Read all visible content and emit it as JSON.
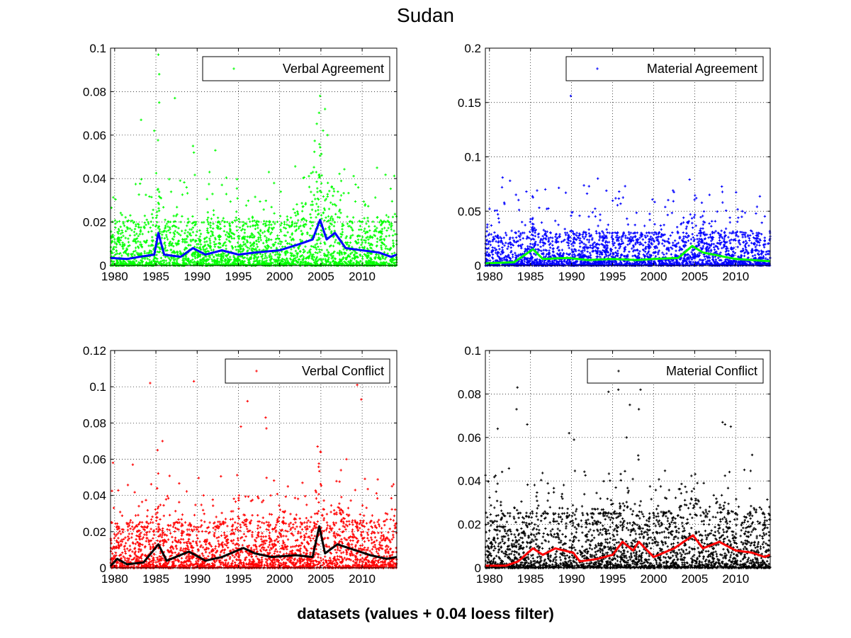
{
  "figure": {
    "title": "Sudan",
    "xlabel": "datasets (values + 0.04 loess filter)"
  },
  "chart_data": [
    {
      "type": "scatter",
      "panel": "top-left",
      "series_name": "Verbal Agreement",
      "point_color": "#00ff00",
      "line_color": "#0000ff",
      "xlim": [
        1979.5,
        2014.2
      ],
      "ylim": [
        0,
        0.1
      ],
      "x_ticks": [
        1980,
        1985,
        1990,
        1995,
        2000,
        2005,
        2010
      ],
      "y_ticks": [
        0,
        0.02,
        0.04,
        0.06,
        0.08,
        0.1
      ],
      "y_tick_labels": [
        "0",
        "0.02",
        "0.04",
        "0.06",
        "0.08",
        "0.1"
      ],
      "legend_position": "top-right",
      "grid": true,
      "dense_band_top": 0.02,
      "outliers": [
        [
          1985.3,
          0.097
        ],
        [
          1985.4,
          0.088
        ],
        [
          1985.4,
          0.075
        ],
        [
          1987.3,
          0.077
        ],
        [
          1983.2,
          0.067
        ],
        [
          1989.5,
          0.055
        ],
        [
          1989.6,
          0.052
        ],
        [
          1992.2,
          0.053
        ],
        [
          2004.9,
          0.078
        ],
        [
          2005.5,
          0.072
        ],
        [
          2005.8,
          0.06
        ],
        [
          2011.8,
          0.045
        ],
        [
          1984.8,
          0.062
        ],
        [
          1991.5,
          0.043
        ],
        [
          1998.7,
          0.043
        ]
      ],
      "trend": [
        [
          1979.5,
          0.0035
        ],
        [
          1981.5,
          0.003
        ],
        [
          1983,
          0.004
        ],
        [
          1984.8,
          0.005
        ],
        [
          1985.3,
          0.015
        ],
        [
          1986,
          0.005
        ],
        [
          1988,
          0.004
        ],
        [
          1989.5,
          0.008
        ],
        [
          1991,
          0.005
        ],
        [
          1993,
          0.007
        ],
        [
          1995,
          0.005
        ],
        [
          1997,
          0.006
        ],
        [
          2000,
          0.007
        ],
        [
          2002.5,
          0.01
        ],
        [
          2004,
          0.012
        ],
        [
          2004.9,
          0.021
        ],
        [
          2005.7,
          0.012
        ],
        [
          2006.7,
          0.015
        ],
        [
          2008,
          0.008
        ],
        [
          2010,
          0.007
        ],
        [
          2012,
          0.006
        ],
        [
          2013.5,
          0.004
        ],
        [
          2014.2,
          0.005
        ]
      ]
    },
    {
      "type": "scatter",
      "panel": "top-right",
      "series_name": "Material Agreement",
      "point_color": "#0000ff",
      "line_color": "#00ff00",
      "xlim": [
        1979.5,
        2014.2
      ],
      "ylim": [
        0,
        0.2
      ],
      "x_ticks": [
        1980,
        1985,
        1990,
        1995,
        2000,
        2005,
        2010
      ],
      "y_ticks": [
        0,
        0.05,
        0.1,
        0.15,
        0.2
      ],
      "y_tick_labels": [
        "0",
        "0.05",
        "0.1",
        "0.15",
        "0.2"
      ],
      "legend_position": "top-right",
      "grid": true,
      "dense_band_top": 0.03,
      "outliers": [
        [
          1989.9,
          0.156
        ],
        [
          1981.6,
          0.081
        ],
        [
          1993.2,
          0.08
        ],
        [
          1982.5,
          0.078
        ],
        [
          1985.8,
          0.069
        ],
        [
          1984.5,
          0.068
        ],
        [
          1986.8,
          0.07
        ],
        [
          1989.3,
          0.067
        ],
        [
          1995.8,
          0.068
        ],
        [
          2006.8,
          0.065
        ],
        [
          2008.4,
          0.058
        ],
        [
          2010.8,
          0.05
        ],
        [
          1992.1,
          0.045
        ],
        [
          2005.2,
          0.062
        ]
      ],
      "trend": [
        [
          1979.5,
          0.002
        ],
        [
          1983,
          0.003
        ],
        [
          1985.3,
          0.015
        ],
        [
          1986.5,
          0.006
        ],
        [
          1989.5,
          0.007
        ],
        [
          1992,
          0.005
        ],
        [
          1995,
          0.006
        ],
        [
          1998,
          0.005
        ],
        [
          2000,
          0.006
        ],
        [
          2003,
          0.007
        ],
        [
          2004.7,
          0.018
        ],
        [
          2006,
          0.012
        ],
        [
          2008,
          0.009
        ],
        [
          2010,
          0.006
        ],
        [
          2012,
          0.005
        ],
        [
          2014.2,
          0.004
        ]
      ]
    },
    {
      "type": "scatter",
      "panel": "bottom-left",
      "series_name": "Verbal Conflict",
      "point_color": "#ff0000",
      "line_color": "#000000",
      "xlim": [
        1979.5,
        2014.2
      ],
      "ylim": [
        0,
        0.12
      ],
      "x_ticks": [
        1980,
        1985,
        1990,
        1995,
        2000,
        2005,
        2010
      ],
      "y_ticks": [
        0,
        0.02,
        0.04,
        0.06,
        0.08,
        0.1,
        0.12
      ],
      "y_tick_labels": [
        "0",
        "0.02",
        "0.04",
        "0.06",
        "0.08",
        "0.1",
        "0.12"
      ],
      "legend_position": "top-right",
      "grid": true,
      "dense_band_top": 0.025,
      "outliers": [
        [
          1984.3,
          0.102
        ],
        [
          1989.6,
          0.103
        ],
        [
          2009.4,
          0.101
        ],
        [
          1996.1,
          0.092
        ],
        [
          2009.9,
          0.093
        ],
        [
          1998.3,
          0.083
        ],
        [
          1998.4,
          0.077
        ],
        [
          1995.3,
          0.078
        ],
        [
          2004.6,
          0.067
        ],
        [
          1985.8,
          0.07
        ],
        [
          1985.2,
          0.065
        ],
        [
          1982.2,
          0.057
        ],
        [
          1979.8,
          0.058
        ],
        [
          2008.1,
          0.06
        ]
      ],
      "trend": [
        [
          1979.5,
          0.001
        ],
        [
          1980.3,
          0.005
        ],
        [
          1981.5,
          0.002
        ],
        [
          1983.5,
          0.003
        ],
        [
          1985.3,
          0.013
        ],
        [
          1986.3,
          0.004
        ],
        [
          1989,
          0.009
        ],
        [
          1991,
          0.004
        ],
        [
          1993,
          0.006
        ],
        [
          1995.6,
          0.011
        ],
        [
          1997,
          0.008
        ],
        [
          1999,
          0.006
        ],
        [
          2002,
          0.007
        ],
        [
          2004,
          0.006
        ],
        [
          2004.8,
          0.023
        ],
        [
          2005.5,
          0.008
        ],
        [
          2007,
          0.013
        ],
        [
          2009,
          0.01
        ],
        [
          2011,
          0.007
        ],
        [
          2013,
          0.005
        ],
        [
          2014.2,
          0.006
        ]
      ]
    },
    {
      "type": "scatter",
      "panel": "bottom-right",
      "series_name": "Material Conflict",
      "point_color": "#000000",
      "line_color": "#ff0000",
      "xlim": [
        1979.5,
        2014.2
      ],
      "ylim": [
        0,
        0.1
      ],
      "x_ticks": [
        1980,
        1985,
        1990,
        1995,
        2000,
        2005,
        2010
      ],
      "y_ticks": [
        0,
        0.02,
        0.04,
        0.06,
        0.08,
        0.1
      ],
      "y_tick_labels": [
        "0",
        "0.02",
        "0.04",
        "0.06",
        "0.08",
        "0.1"
      ],
      "legend_position": "top-right",
      "grid": true,
      "dense_band_top": 0.025,
      "outliers": [
        [
          1983.4,
          0.083
        ],
        [
          1995.7,
          0.082
        ],
        [
          1998.4,
          0.082
        ],
        [
          1994.5,
          0.081
        ],
        [
          1997.1,
          0.075
        ],
        [
          1998.2,
          0.073
        ],
        [
          1983.3,
          0.073
        ],
        [
          1984.6,
          0.066
        ],
        [
          2008.4,
          0.067
        ],
        [
          2008.7,
          0.066
        ],
        [
          2009.4,
          0.065
        ],
        [
          1981,
          0.064
        ],
        [
          1989.7,
          0.062
        ],
        [
          1990.3,
          0.059
        ],
        [
          2012,
          0.052
        ],
        [
          1996.7,
          0.06
        ]
      ],
      "trend": [
        [
          1979.5,
          0.001
        ],
        [
          1982,
          0.001
        ],
        [
          1983.5,
          0.003
        ],
        [
          1985.3,
          0.009
        ],
        [
          1986.5,
          0.006
        ],
        [
          1988,
          0.009
        ],
        [
          1990.2,
          0.007
        ],
        [
          1991,
          0.003
        ],
        [
          1993,
          0.004
        ],
        [
          1995,
          0.006
        ],
        [
          1996.2,
          0.012
        ],
        [
          1997.5,
          0.008
        ],
        [
          1998.2,
          0.012
        ],
        [
          2000,
          0.005
        ],
        [
          2002.5,
          0.009
        ],
        [
          2004.8,
          0.015
        ],
        [
          2006,
          0.009
        ],
        [
          2008,
          0.012
        ],
        [
          2010,
          0.008
        ],
        [
          2012,
          0.007
        ],
        [
          2013.5,
          0.005
        ],
        [
          2014.2,
          0.006
        ]
      ]
    }
  ]
}
